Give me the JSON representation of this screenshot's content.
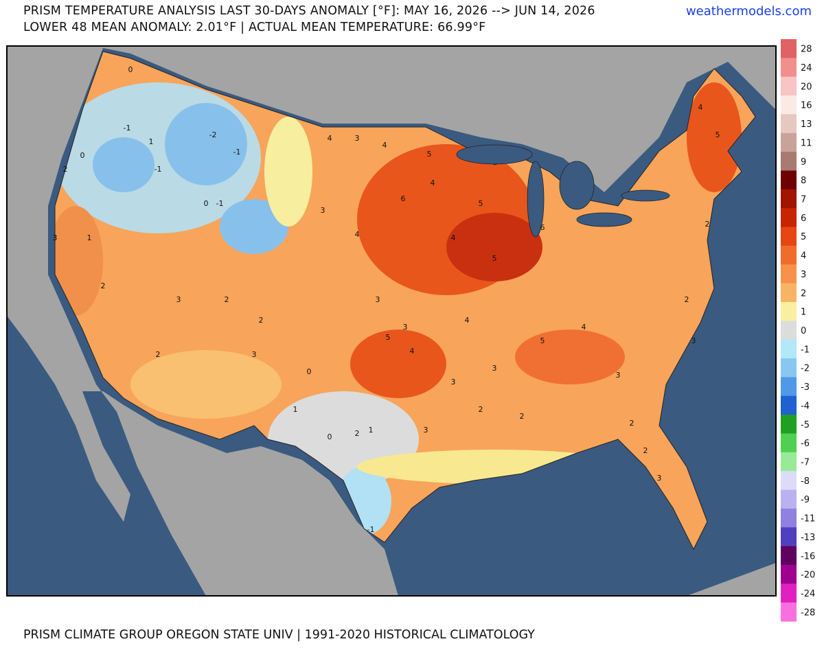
{
  "header": {
    "title": "PRISM TEMPERATURE ANALYSIS LAST 30-DAYS ANOMALY [°F]: MAY 16, 2026 --> JUN 14, 2026",
    "subtitle": "LOWER 48 MEAN ANOMALY: 2.01°F | ACTUAL MEAN TEMPERATURE: 66.99°F",
    "site": "weathermodels.com"
  },
  "footer": "PRISM CLIMATE GROUP OREGON STATE UNIV | 1991-2020 HISTORICAL CLIMATOLOGY",
  "legend": [
    {
      "value": 28,
      "color": "#e06262"
    },
    {
      "value": 24,
      "color": "#f28e8e"
    },
    {
      "value": 20,
      "color": "#f8c4c4"
    },
    {
      "value": 16,
      "color": "#fbe9e4"
    },
    {
      "value": 13,
      "color": "#e6c8c0"
    },
    {
      "value": 11,
      "color": "#c9a39a"
    },
    {
      "value": 9,
      "color": "#a87a70"
    },
    {
      "value": 8,
      "color": "#6e0000"
    },
    {
      "value": 7,
      "color": "#a01400"
    },
    {
      "value": 6,
      "color": "#c82400"
    },
    {
      "value": 5,
      "color": "#e84414"
    },
    {
      "value": 4,
      "color": "#f06c2a"
    },
    {
      "value": 3,
      "color": "#f8924a"
    },
    {
      "value": 2,
      "color": "#f8b464"
    },
    {
      "value": 1,
      "color": "#f8f0a0"
    },
    {
      "value": 0,
      "color": "#dcdcdc"
    },
    {
      "value": -1,
      "color": "#b2e8f8"
    },
    {
      "value": -2,
      "color": "#88c8f0"
    },
    {
      "value": -3,
      "color": "#5098e8"
    },
    {
      "value": -4,
      "color": "#2060d0"
    },
    {
      "value": -5,
      "color": "#20a020"
    },
    {
      "value": -6,
      "color": "#50d050"
    },
    {
      "value": -7,
      "color": "#98ea98"
    },
    {
      "value": -8,
      "color": "#dcdcf8"
    },
    {
      "value": -9,
      "color": "#bab2f0"
    },
    {
      "value": -11,
      "color": "#9080e0"
    },
    {
      "value": -13,
      "color": "#5040c0"
    },
    {
      "value": -16,
      "color": "#600060"
    },
    {
      "value": -20,
      "color": "#a00090"
    },
    {
      "value": -24,
      "color": "#e020c0"
    },
    {
      "value": -28,
      "color": "#f870e0"
    }
  ],
  "map_labels": [
    0,
    -1,
    0,
    -1,
    -2,
    -1,
    1,
    0,
    -1,
    2,
    1,
    2,
    3,
    4,
    4,
    3,
    5,
    6,
    4,
    5,
    4,
    5,
    6,
    3,
    4,
    5,
    3,
    3,
    4,
    4,
    3,
    3,
    2,
    2,
    3,
    2,
    1,
    0,
    0,
    1,
    -1,
    2,
    2,
    3,
    2,
    3,
    5,
    4,
    3,
    2,
    2,
    3,
    3,
    2,
    2,
    5,
    4
  ]
}
